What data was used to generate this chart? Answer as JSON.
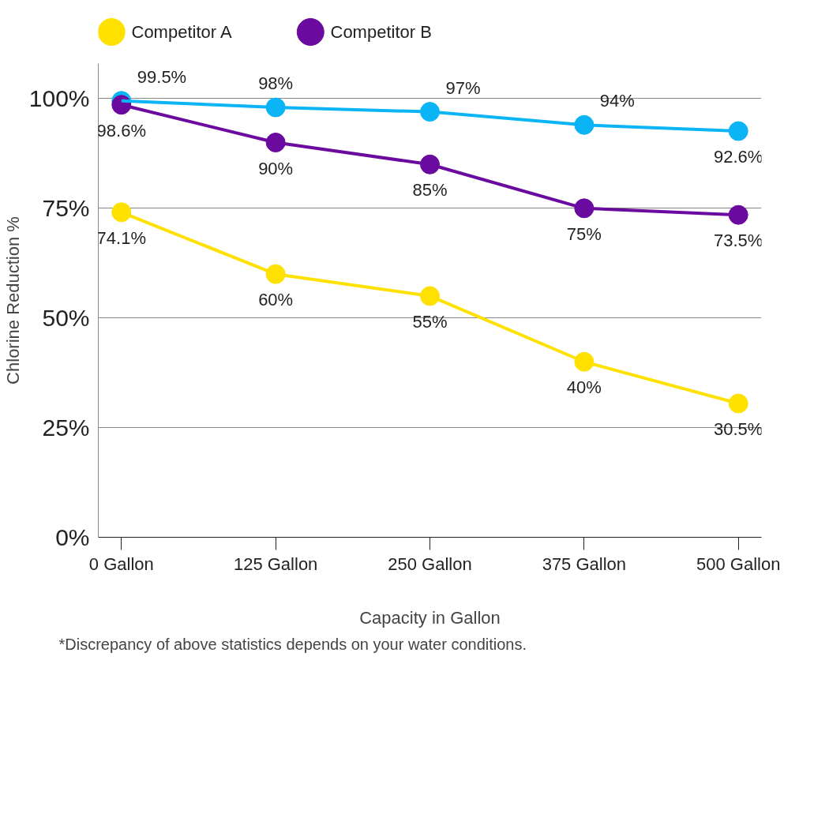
{
  "chart_data": {
    "type": "line",
    "xlabel": "Capacity in Gallon",
    "ylabel": "Chlorine Reduction %",
    "categories": [
      "0 Gallon",
      "125 Gallon",
      "250 Gallon",
      "375 Gallon",
      "500 Gallon"
    ],
    "series": [
      {
        "name": "Competitor A",
        "color": "#ffe100",
        "values": [
          74.1,
          60,
          55,
          40,
          30.5
        ],
        "value_labels": [
          "74.1%",
          "60%",
          "55%",
          "40%",
          "30.5%"
        ]
      },
      {
        "name": "Competitor B",
        "color": "#6a0a9e",
        "values": [
          98.6,
          90,
          85,
          75,
          73.5
        ],
        "value_labels": [
          "98.6%",
          "90%",
          "85%",
          "75%",
          "73.5%"
        ]
      },
      {
        "color": "#0ab4f5",
        "values": [
          99.5,
          98,
          97,
          94,
          92.6
        ],
        "value_labels": [
          "99.5%",
          "98%",
          "97%",
          "94%",
          "92.6%"
        ]
      }
    ],
    "ylim": [
      0,
      108
    ],
    "yticks": [
      {
        "value": 0,
        "label": "0%"
      },
      {
        "value": 25,
        "label": "25%"
      },
      {
        "value": 50,
        "label": "50%"
      },
      {
        "value": 75,
        "label": "75%"
      },
      {
        "value": 100,
        "label": "100%"
      }
    ],
    "grid": "y",
    "legend": "top",
    "marker": "circle",
    "line_style": "solid",
    "annotations": [
      "*Discrepancy of above statistics depends on your water conditions."
    ]
  }
}
